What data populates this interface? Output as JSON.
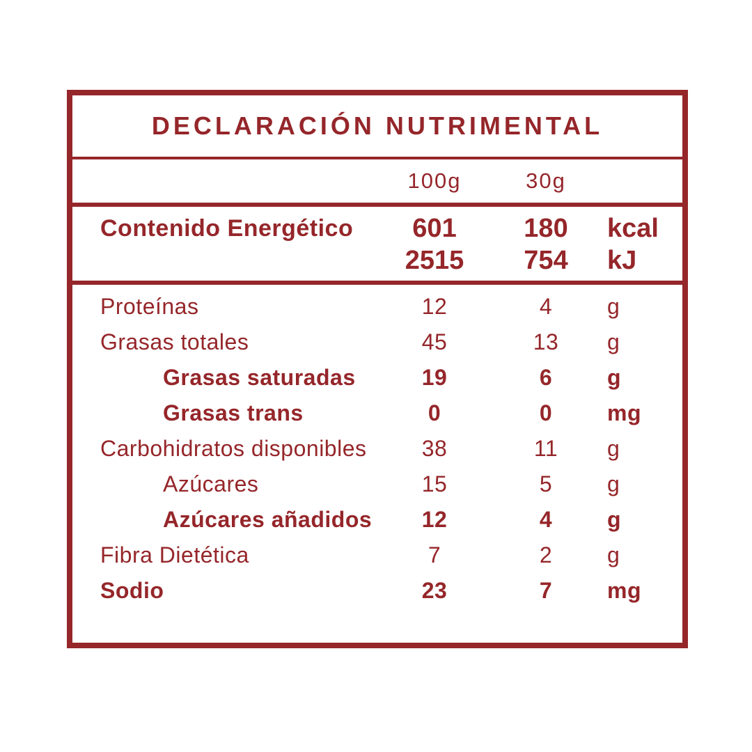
{
  "colors": {
    "accent": "#95262A",
    "background": "#FFFFFF"
  },
  "title": "DECLARACIÓN NUTRIMENTAL",
  "columns": {
    "col1": "100g",
    "col2": "30g"
  },
  "energy": {
    "label": "Contenido Energético",
    "rows": [
      {
        "v1": "601",
        "v2": "180",
        "unit": "kcal"
      },
      {
        "v1": "2515",
        "v2": "754",
        "unit": "kJ"
      }
    ]
  },
  "nutrients": [
    {
      "label": "Proteínas",
      "v1": "12",
      "v2": "4",
      "unit": "g",
      "bold": false,
      "indent": false
    },
    {
      "label": "Grasas totales",
      "v1": "45",
      "v2": "13",
      "unit": "g",
      "bold": false,
      "indent": false
    },
    {
      "label": "Grasas saturadas",
      "v1": "19",
      "v2": "6",
      "unit": "g",
      "bold": true,
      "indent": true
    },
    {
      "label": "Grasas trans",
      "v1": "0",
      "v2": "0",
      "unit": "mg",
      "bold": true,
      "indent": true
    },
    {
      "label": "Carbohidratos disponibles",
      "v1": "38",
      "v2": "11",
      "unit": "g",
      "bold": false,
      "indent": false
    },
    {
      "label": "Azúcares",
      "v1": "15",
      "v2": "5",
      "unit": "g",
      "bold": false,
      "indent": true
    },
    {
      "label": "Azúcares añadidos",
      "v1": "12",
      "v2": "4",
      "unit": "g",
      "bold": true,
      "indent": true
    },
    {
      "label": "Fibra Dietética",
      "v1": "7",
      "v2": "2",
      "unit": "g",
      "bold": false,
      "indent": false
    },
    {
      "label": "Sodio",
      "v1": "23",
      "v2": "7",
      "unit": "mg",
      "bold": true,
      "indent": false
    }
  ]
}
